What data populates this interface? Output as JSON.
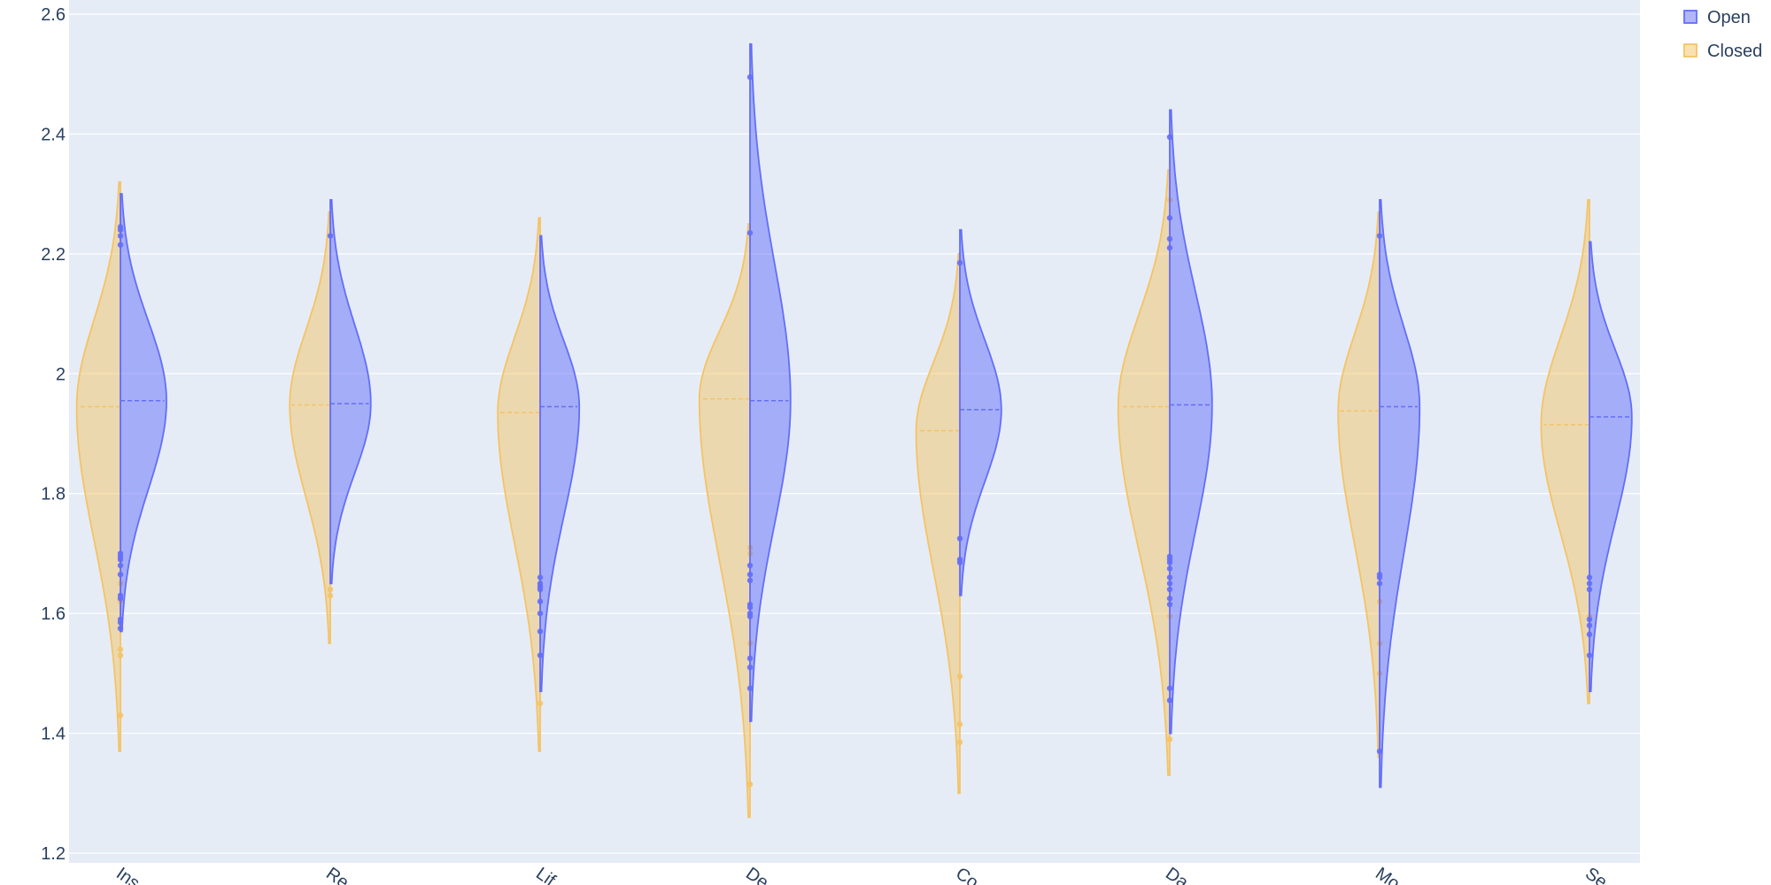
{
  "chart_data": {
    "type": "violin",
    "orientation": "split",
    "categories": [
      "Ins",
      "Re",
      "Lif",
      "De",
      "Co",
      "Da",
      "Mo",
      "Se"
    ],
    "ylim": [
      1.2,
      2.6
    ],
    "yticks": [
      1.2,
      1.4,
      1.6,
      1.8,
      2,
      2.2,
      2.4,
      2.6
    ],
    "grid": true,
    "legend_position": "top-right",
    "series": [
      {
        "name": "Open",
        "side": "right",
        "color": "#636efa",
        "medians": [
          1.955,
          1.95,
          1.945,
          1.955,
          1.94,
          1.948,
          1.945,
          1.928
        ],
        "min": [
          1.57,
          1.65,
          1.47,
          1.42,
          1.63,
          1.4,
          1.31,
          1.47
        ],
        "max": [
          2.3,
          2.29,
          2.23,
          2.55,
          2.24,
          2.44,
          2.29,
          2.22
        ],
        "width": [
          1.0,
          0.88,
          0.85,
          0.88,
          0.9,
          0.92,
          0.87,
          0.92
        ],
        "outliers": [
          [
            1.585,
            1.59,
            1.575,
            1.625,
            1.63,
            1.665,
            1.68,
            1.69,
            1.695,
            1.7,
            2.215,
            2.23,
            2.24,
            2.245
          ],
          [
            2.23
          ],
          [
            1.53,
            1.57,
            1.6,
            1.62,
            1.64,
            1.645,
            1.65,
            1.66
          ],
          [
            1.475,
            1.51,
            1.525,
            1.595,
            1.6,
            1.61,
            1.615,
            1.655,
            1.665,
            1.68,
            2.235,
            2.495
          ],
          [
            1.685,
            1.69,
            1.725,
            2.185
          ],
          [
            1.455,
            1.475,
            1.615,
            1.625,
            1.64,
            1.65,
            1.66,
            1.675,
            1.685,
            1.69,
            1.695,
            2.21,
            2.225,
            2.26,
            2.395
          ],
          [
            1.37,
            1.65,
            1.66,
            1.665,
            2.23
          ],
          [
            1.53,
            1.565,
            1.58,
            1.59,
            1.64,
            1.65,
            1.66
          ]
        ]
      },
      {
        "name": "Closed",
        "side": "left",
        "color": "#f4c366",
        "medians": [
          1.945,
          1.948,
          1.935,
          1.958,
          1.905,
          1.945,
          1.938,
          1.915
        ],
        "min": [
          1.37,
          1.55,
          1.37,
          1.26,
          1.3,
          1.33,
          1.36,
          1.45
        ],
        "max": [
          2.32,
          2.27,
          2.26,
          2.25,
          2.2,
          2.34,
          2.27,
          2.29
        ],
        "width": [
          0.95,
          0.88,
          0.92,
          1.1,
          0.95,
          1.12,
          0.9,
          1.05
        ],
        "outliers": [
          [
            1.43,
            1.53,
            1.54,
            1.62,
            1.65
          ],
          [
            1.63,
            1.64
          ],
          [
            1.45,
            1.53
          ],
          [
            1.315,
            1.55,
            1.7,
            1.71
          ],
          [
            1.385,
            1.415,
            1.495
          ],
          [
            1.39,
            1.595,
            2.29
          ],
          [
            1.5,
            1.55,
            1.62
          ],
          [
            1.595
          ]
        ]
      }
    ]
  }
}
